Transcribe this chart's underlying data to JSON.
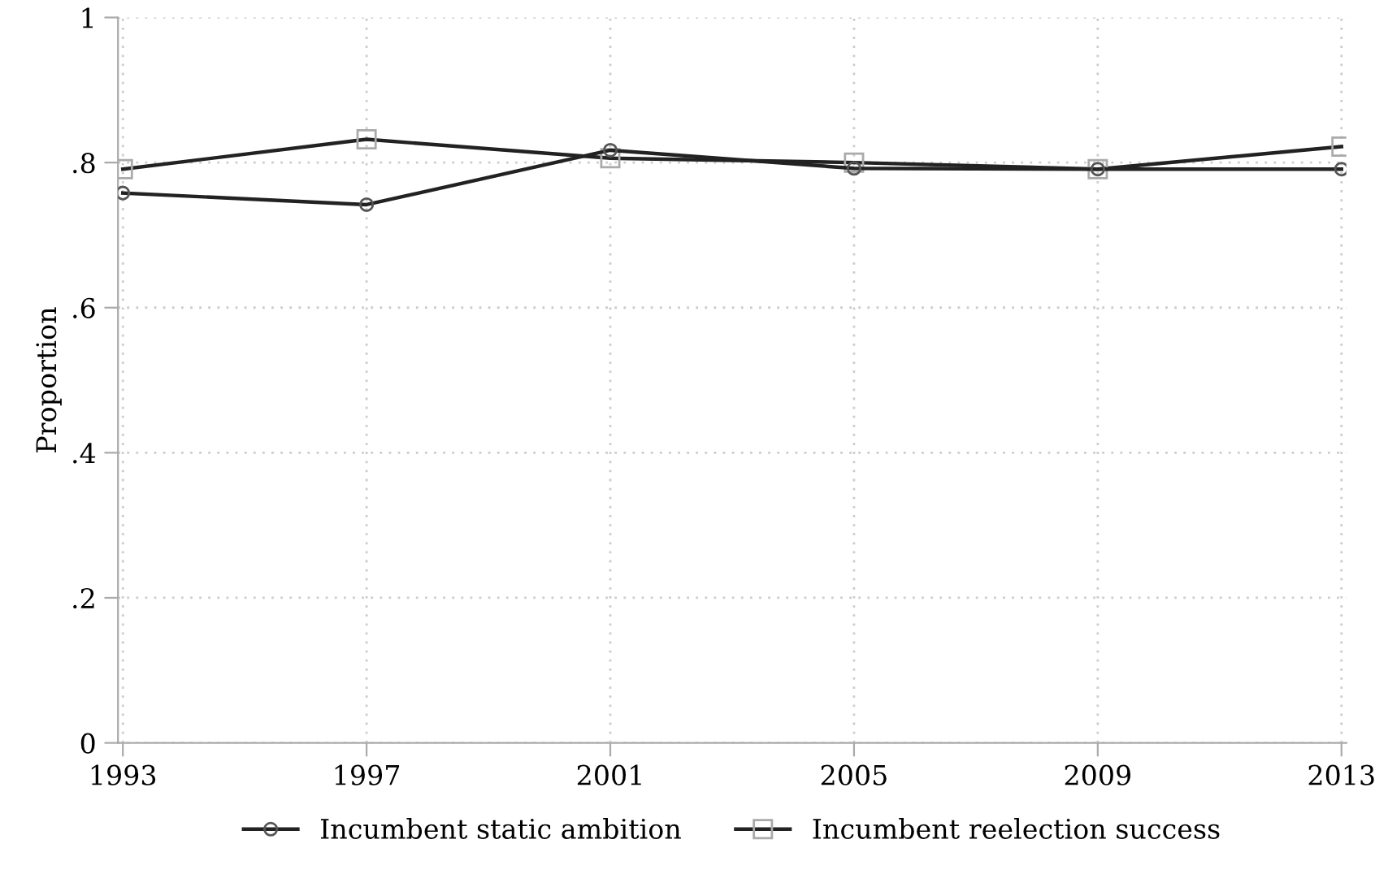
{
  "chart_data": {
    "type": "line",
    "ylabel": "Proportion",
    "x": [
      1993,
      1997,
      2001,
      2005,
      2009,
      2013
    ],
    "series": [
      {
        "name": "Incumbent static ambition",
        "color": "#222222",
        "marker": "circle",
        "values": [
          0.758,
          0.742,
          0.817,
          0.792,
          0.791,
          0.791
        ]
      },
      {
        "name": "Incumbent reelection success",
        "color": "#222222",
        "marker": "square",
        "values": [
          0.791,
          0.832,
          0.806,
          0.8,
          0.791,
          0.822
        ]
      }
    ],
    "xlim": [
      1993,
      2013
    ],
    "xticks": [
      1993,
      1997,
      2001,
      2005,
      2009,
      2013
    ],
    "ylim": [
      0,
      1
    ],
    "yticks": [
      0,
      {
        "value": 0.2,
        "label": ".2"
      },
      {
        "value": 0.4,
        "label": ".4"
      },
      {
        "value": 0.6,
        "label": ".6"
      },
      {
        "value": 0.8,
        "label": ".8"
      },
      1
    ],
    "grid": true,
    "legend": "bottom"
  }
}
